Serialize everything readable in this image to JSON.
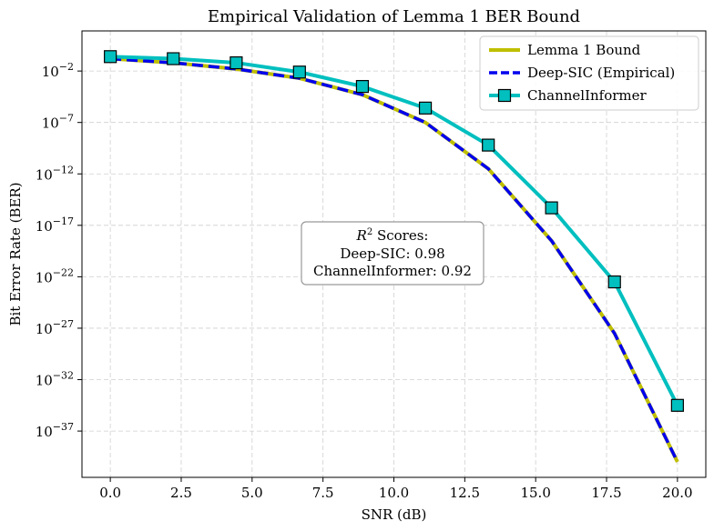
{
  "chart_data": {
    "type": "line",
    "title": "Empirical Validation of Lemma 1 BER Bound",
    "xlabel": "SNR (dB)",
    "ylabel": "Bit Error Rate (BER)",
    "yscale": "log",
    "xlim": [
      -1,
      21
    ],
    "ylim_log10": [
      -41.5,
      1.9
    ],
    "x_ticks": [
      0.0,
      2.5,
      5.0,
      7.5,
      10.0,
      12.5,
      15.0,
      17.5,
      20.0
    ],
    "x_tick_labels": [
      "0.0",
      "2.5",
      "5.0",
      "7.5",
      "10.0",
      "12.5",
      "15.0",
      "17.5",
      "20.0"
    ],
    "y_tick_exponents": [
      -2,
      -7,
      -12,
      -17,
      -22,
      -27,
      -32,
      -37
    ],
    "y_tick_base": "10",
    "y_tick_sup": [
      "−2",
      "−7",
      "−12",
      "−17",
      "−22",
      "−27",
      "−32",
      "−37"
    ],
    "grid": true,
    "x": [
      0.0,
      2.22,
      4.44,
      6.67,
      8.89,
      11.11,
      13.33,
      15.56,
      17.78,
      20.0
    ],
    "series": [
      {
        "name": "Lemma 1 Bound",
        "color": "#bfbf00",
        "style": "solid",
        "log10_values": [
          -0.8,
          -1.2,
          -1.8,
          -2.7,
          -4.3,
          -7.0,
          -11.5,
          -18.5,
          -27.5,
          -40.0
        ]
      },
      {
        "name": "Deep-SIC (Empirical)",
        "color": "#0000ee",
        "style": "dashed",
        "log10_values": [
          -0.8,
          -1.2,
          -1.8,
          -2.7,
          -4.3,
          -7.0,
          -11.5,
          -18.5,
          -27.5,
          -40.0
        ]
      },
      {
        "name": "ChannelInformer",
        "color": "#00bfbf",
        "style": "solid",
        "marker": "square",
        "log10_values": [
          -0.6,
          -0.8,
          -1.2,
          -2.1,
          -3.5,
          -5.6,
          -9.2,
          -15.3,
          -22.5,
          -34.5
        ]
      }
    ],
    "legend_position": "top-right",
    "annotation": {
      "r2_symbol": "R",
      "r2_sup": "2",
      "line1_suffix": " Scores:",
      "line2": "Deep-SIC: 0.98",
      "line3": "ChannelInformer: 0.92"
    }
  }
}
